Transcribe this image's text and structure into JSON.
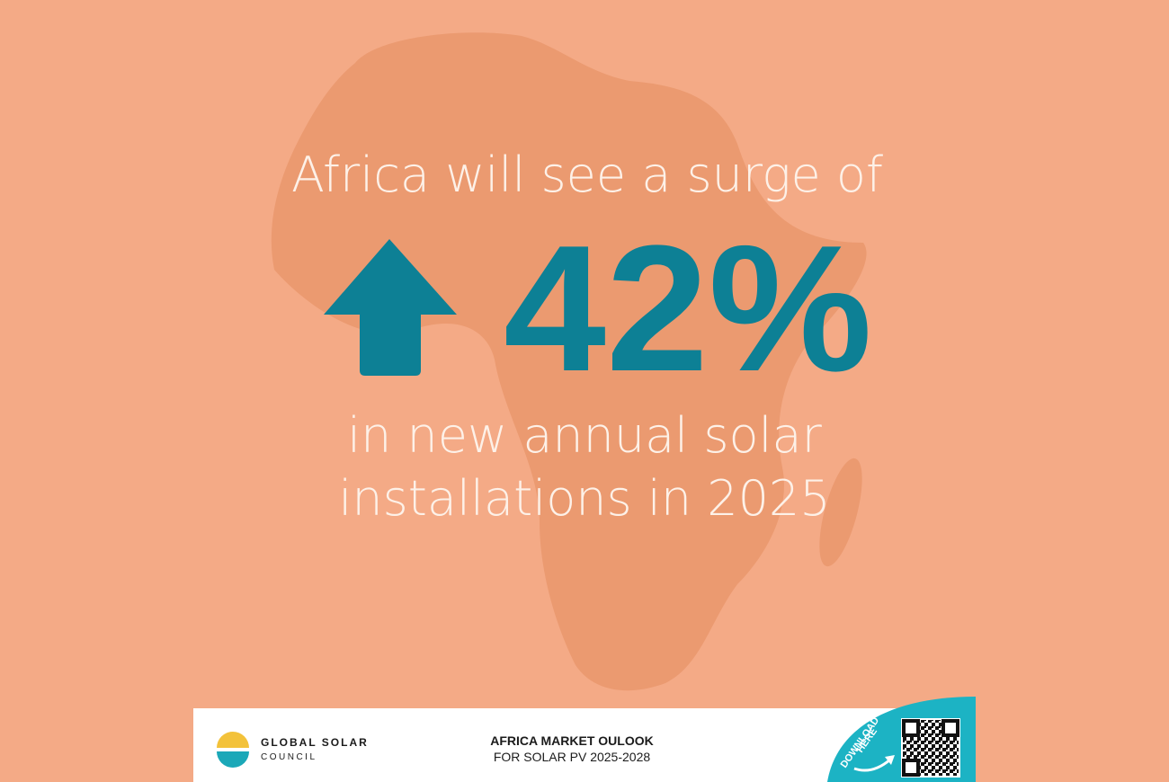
{
  "headline": "Africa will see a surge of",
  "stat": "42%",
  "subline": [
    "in new annual solar",
    "installations in 2025"
  ],
  "footer": {
    "logo": [
      "GLOBAL SOLAR",
      "COUNCIL"
    ],
    "report": [
      "AFRICA MARKET OULOOK",
      "FOR SOLAR PV 2025-2028"
    ],
    "cta": [
      "DOWNLOAD",
      "HERE"
    ]
  }
}
